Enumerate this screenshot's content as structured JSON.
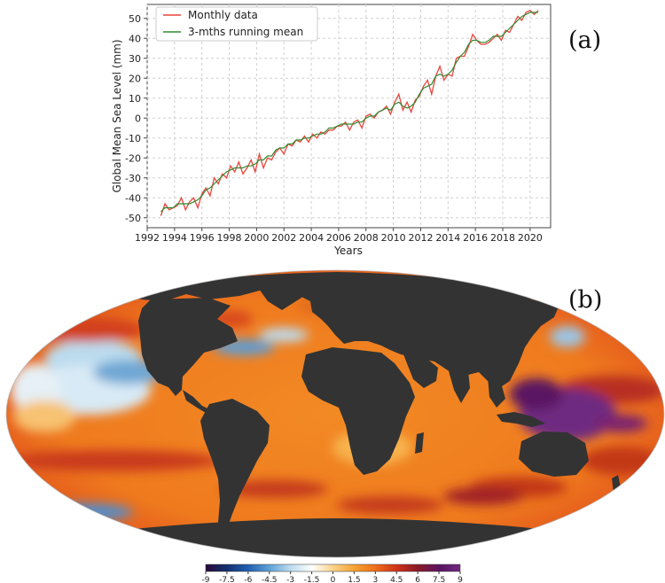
{
  "chart_data": [
    {
      "type": "line",
      "panel_label": "(a)",
      "xlabel": "Years",
      "ylabel": "Global Mean Sea Level (mm)",
      "xlim": [
        1992,
        2021.5
      ],
      "ylim": [
        -55,
        57
      ],
      "xticks": [
        "1992",
        "1994",
        "1996",
        "1998",
        "2000",
        "2002",
        "2004",
        "2006",
        "2008",
        "2010",
        "2012",
        "2014",
        "2016",
        "2018",
        "2020"
      ],
      "yticks": [
        "-50",
        "-40",
        "-30",
        "-20",
        "-10",
        "0",
        "10",
        "20",
        "30",
        "40",
        "50"
      ],
      "grid": true,
      "legend_position": "top-left",
      "series": [
        {
          "name": "Monthly data",
          "color": "#e8453c",
          "x": [
            1993.0,
            1993.3,
            1993.6,
            1993.9,
            1994.2,
            1994.5,
            1994.8,
            1995.1,
            1995.4,
            1995.7,
            1996.0,
            1996.3,
            1996.6,
            1996.9,
            1997.2,
            1997.5,
            1997.8,
            1998.1,
            1998.4,
            1998.7,
            1999.0,
            1999.3,
            1999.6,
            1999.9,
            2000.2,
            2000.5,
            2000.8,
            2001.1,
            2001.4,
            2001.7,
            2002.0,
            2002.3,
            2002.6,
            2002.9,
            2003.2,
            2003.5,
            2003.8,
            2004.1,
            2004.4,
            2004.7,
            2005.0,
            2005.3,
            2005.6,
            2005.9,
            2006.2,
            2006.5,
            2006.8,
            2007.1,
            2007.4,
            2007.7,
            2008.0,
            2008.3,
            2008.6,
            2008.9,
            2009.2,
            2009.5,
            2009.8,
            2010.1,
            2010.4,
            2010.7,
            2011.0,
            2011.3,
            2011.6,
            2011.9,
            2012.2,
            2012.5,
            2012.8,
            2013.1,
            2013.4,
            2013.7,
            2014.0,
            2014.3,
            2014.6,
            2014.9,
            2015.2,
            2015.5,
            2015.8,
            2016.1,
            2016.4,
            2016.7,
            2017.0,
            2017.3,
            2017.6,
            2017.9,
            2018.2,
            2018.5,
            2018.8,
            2019.1,
            2019.4,
            2019.7,
            2020.0,
            2020.3,
            2020.6
          ],
          "y": [
            -49,
            -43,
            -46,
            -45,
            -44,
            -40,
            -46,
            -42,
            -40,
            -45,
            -38,
            -35,
            -39,
            -30,
            -33,
            -28,
            -30,
            -24,
            -27,
            -22,
            -28,
            -25,
            -21,
            -27,
            -18,
            -25,
            -20,
            -21,
            -17,
            -15,
            -18,
            -13,
            -14,
            -11,
            -12,
            -9,
            -12,
            -8,
            -10,
            -7,
            -8,
            -6,
            -6,
            -4,
            -4,
            -2,
            -6,
            -2,
            -1,
            -5,
            1,
            2,
            0,
            3,
            4,
            6,
            2,
            8,
            12,
            4,
            8,
            3,
            9,
            11,
            16,
            19,
            12,
            21,
            26,
            19,
            22,
            21,
            30,
            31,
            31,
            36,
            42,
            39,
            37,
            37,
            38,
            40,
            42,
            39,
            44,
            43,
            47,
            51,
            49,
            53,
            54,
            52,
            54
          ]
        },
        {
          "name": "3-mths running mean",
          "color": "#2e8b2e",
          "x": [
            1993.0,
            1993.3,
            1993.6,
            1993.9,
            1994.2,
            1994.5,
            1994.8,
            1995.1,
            1995.4,
            1995.7,
            1996.0,
            1996.3,
            1996.6,
            1996.9,
            1997.2,
            1997.5,
            1997.8,
            1998.1,
            1998.4,
            1998.7,
            1999.0,
            1999.3,
            1999.6,
            1999.9,
            2000.2,
            2000.5,
            2000.8,
            2001.1,
            2001.4,
            2001.7,
            2002.0,
            2002.3,
            2002.6,
            2002.9,
            2003.2,
            2003.5,
            2003.8,
            2004.1,
            2004.4,
            2004.7,
            2005.0,
            2005.3,
            2005.6,
            2005.9,
            2006.2,
            2006.5,
            2006.8,
            2007.1,
            2007.4,
            2007.7,
            2008.0,
            2008.3,
            2008.6,
            2008.9,
            2009.2,
            2009.5,
            2009.8,
            2010.1,
            2010.4,
            2010.7,
            2011.0,
            2011.3,
            2011.6,
            2011.9,
            2012.2,
            2012.5,
            2012.8,
            2013.1,
            2013.4,
            2013.7,
            2014.0,
            2014.3,
            2014.6,
            2014.9,
            2015.2,
            2015.5,
            2015.8,
            2016.1,
            2016.4,
            2016.7,
            2017.0,
            2017.3,
            2017.6,
            2017.9,
            2018.2,
            2018.5,
            2018.8,
            2019.1,
            2019.4,
            2019.7,
            2020.0,
            2020.3,
            2020.6
          ],
          "y": [
            -47,
            -45,
            -45,
            -45,
            -43,
            -43,
            -43,
            -43,
            -42,
            -41,
            -39,
            -36,
            -35,
            -33,
            -31,
            -29,
            -27,
            -26,
            -25,
            -25,
            -25,
            -24,
            -24,
            -23,
            -21,
            -21,
            -19,
            -19,
            -16,
            -15,
            -15,
            -13,
            -13,
            -11,
            -11,
            -10,
            -10,
            -9,
            -8,
            -8,
            -7,
            -5,
            -5,
            -4,
            -3,
            -3,
            -3,
            -3,
            -2,
            -2,
            0,
            1,
            1,
            3,
            4,
            5,
            4,
            7,
            8,
            6,
            5,
            6,
            8,
            12,
            15,
            16,
            17,
            21,
            22,
            21,
            22,
            24,
            28,
            31,
            33,
            37,
            39,
            39,
            38,
            38,
            39,
            41,
            41,
            41,
            43,
            45,
            47,
            49,
            51,
            52,
            53,
            53,
            53
          ]
        }
      ]
    },
    {
      "type": "heatmap",
      "panel_label": "(b)",
      "projection": "Mollweide world map, land shown dark gray",
      "colorbar": {
        "ticks": [
          "-9",
          "-7.5",
          "-6",
          "-4.5",
          "-3",
          "-1.5",
          "0",
          "1.5",
          "3",
          "4.5",
          "6",
          "7.5",
          "9"
        ],
        "range": [
          -9,
          9
        ],
        "stops": [
          "#2a0a3a",
          "#12306e",
          "#1f5fb0",
          "#5fa2d6",
          "#bcdcee",
          "#ffffff",
          "#fbd38a",
          "#f6a433",
          "#ef6f1a",
          "#cf3318",
          "#8a1a28",
          "#5a1362",
          "#6e2a80"
        ]
      },
      "colors": {
        "land": "#333333",
        "ocean_base": "#f28a24"
      }
    }
  ]
}
